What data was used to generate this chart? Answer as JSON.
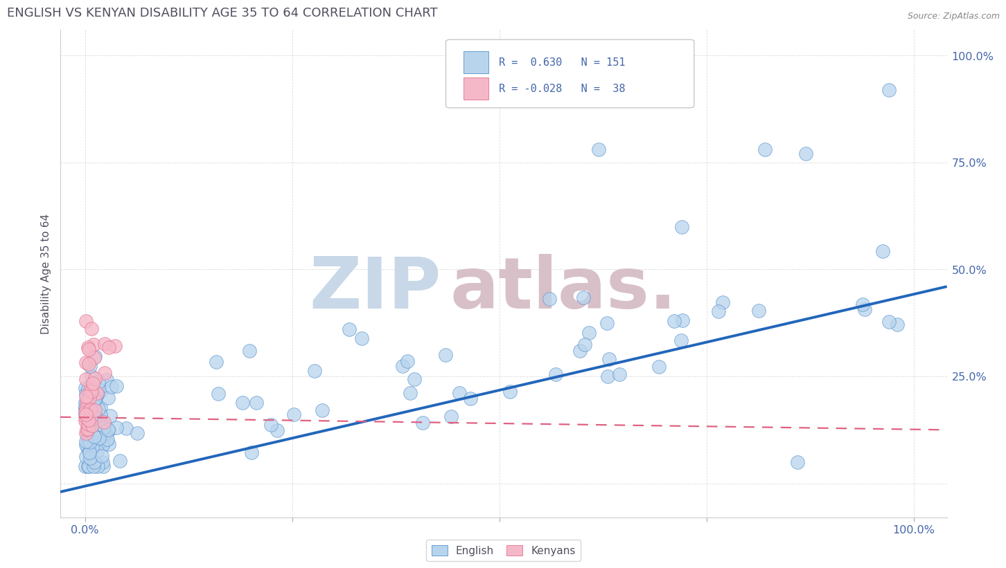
{
  "title": "ENGLISH VS KENYAN DISABILITY AGE 35 TO 64 CORRELATION CHART",
  "source_text": "Source: ZipAtlas.com",
  "ylabel": "Disability Age 35 to 64",
  "english_R": 0.63,
  "english_N": 151,
  "kenyan_R": -0.028,
  "kenyan_N": 38,
  "english_color": "#b8d4ed",
  "kenyan_color": "#f5b8c8",
  "english_edge_color": "#5590cc",
  "kenyan_edge_color": "#e07090",
  "english_line_color": "#2266bb",
  "kenyan_line_color": "#e06080",
  "grid_color": "#cccccc",
  "title_color": "#505060",
  "watermark_zip": "ZIP",
  "watermark_atlas": "atlas.",
  "watermark_color_zip": "#c8d8e8",
  "watermark_color_atlas": "#d8c0c8",
  "xlim": [
    -0.03,
    1.04
  ],
  "ylim": [
    -0.08,
    1.06
  ],
  "xtick_pos": [
    0.0,
    0.25,
    0.5,
    0.75,
    1.0
  ],
  "xtick_labels": [
    "0.0%",
    "",
    "",
    "",
    "100.0%"
  ],
  "ytick_pos": [
    0.0,
    0.25,
    0.5,
    0.75,
    1.0
  ],
  "ytick_labels": [
    "",
    "25.0%",
    "50.0%",
    "75.0%",
    "100.0%"
  ],
  "english_line_x0": -0.03,
  "english_line_x1": 1.04,
  "english_line_y0": -0.02,
  "english_line_y1": 0.46,
  "kenyan_line_x0": -0.03,
  "kenyan_line_x1": 1.04,
  "kenyan_line_y0": 0.155,
  "kenyan_line_y1": 0.125,
  "background_color": "#ffffff",
  "legend_color_english": "#b8d4ed",
  "legend_color_kenyan": "#f5b8c8",
  "legend_edge_english": "#5590cc",
  "legend_edge_kenyan": "#e07090",
  "tick_color": "#4466aa"
}
